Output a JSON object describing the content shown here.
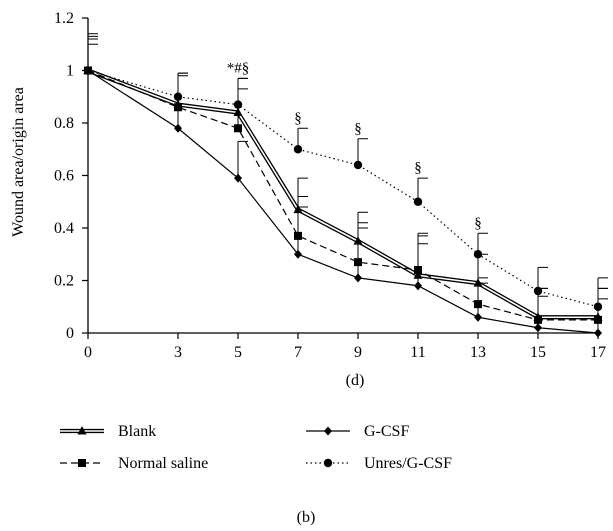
{
  "chart_data": {
    "type": "line",
    "ylabel": "Wound area/origin area",
    "xlabel": "(d)",
    "caption": "(b)",
    "x": [
      0,
      3,
      5,
      7,
      9,
      11,
      13,
      15,
      17
    ],
    "x_tick_labels": [
      "0",
      "3",
      "5",
      "7",
      "9",
      "11",
      "13",
      "15",
      "17"
    ],
    "ylim": [
      0,
      1.2
    ],
    "y_ticks": [
      0,
      0.2,
      0.4,
      0.6,
      0.8,
      1,
      1.2
    ],
    "y_tick_labels": [
      "0",
      "0.2",
      "0.4",
      "0.6",
      "0.8",
      "1",
      "1.2"
    ],
    "grid": false,
    "legend_position": "bottom",
    "series": [
      {
        "name": "Blank",
        "marker": "triangle",
        "line_style": "double",
        "values": [
          1.0,
          0.87,
          0.84,
          0.47,
          0.35,
          0.22,
          0.19,
          0.06,
          0.06
        ],
        "errors": [
          0.13,
          0.12,
          0.13,
          0.12,
          0.11,
          0.12,
          0.11,
          0.11,
          0.11
        ]
      },
      {
        "name": "Normal saline",
        "marker": "square",
        "line_style": "dashed",
        "values": [
          1.0,
          0.86,
          0.78,
          0.37,
          0.27,
          0.24,
          0.11,
          0.05,
          0.05
        ],
        "errors": [
          0.14,
          0.12,
          0.15,
          0.15,
          0.15,
          0.14,
          0.1,
          0.12,
          0.12
        ]
      },
      {
        "name": "G-CSF",
        "marker": "diamond",
        "line_style": "solid",
        "values": [
          1.0,
          0.78,
          0.59,
          0.3,
          0.21,
          0.18,
          0.06,
          0.02,
          0.0
        ],
        "errors": [
          0.1,
          0.09,
          0.14,
          0.18,
          0.19,
          0.19,
          0.13,
          0.12,
          0.13
        ]
      },
      {
        "name": "Unres/G-CSF",
        "marker": "circle",
        "line_style": "dotted",
        "values": [
          1.0,
          0.9,
          0.87,
          0.7,
          0.64,
          0.5,
          0.3,
          0.16,
          0.1
        ],
        "errors": [
          0.12,
          0.09,
          0.1,
          0.08,
          0.1,
          0.09,
          0.08,
          0.09,
          0.11
        ]
      }
    ],
    "annotations": [
      {
        "x": 5,
        "text": "*#§"
      },
      {
        "x": 7,
        "text": "§"
      },
      {
        "x": 9,
        "text": "§"
      },
      {
        "x": 11,
        "text": "§"
      },
      {
        "x": 13,
        "text": "§"
      }
    ]
  }
}
